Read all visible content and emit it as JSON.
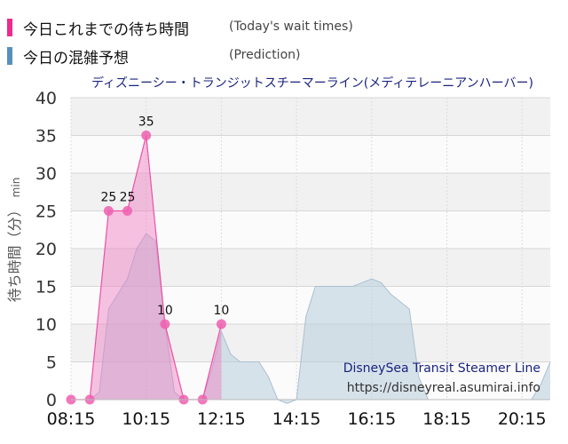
{
  "legend": {
    "today": {
      "label": "今日これまでの待ち時間",
      "note": "(Today's wait times)",
      "color": "#ee2a8f"
    },
    "prediction": {
      "label": "今日の混雑予想",
      "note": "(Prediction)",
      "color": "#5a8fbd"
    }
  },
  "chart_data": {
    "type": "area",
    "title": "ディズニーシー・トランジットスチーマーライン(メディテレーニアンハーバー)",
    "ylabel": "待ち時間（分）",
    "yunit": "min",
    "ylim": [
      0,
      40
    ],
    "yticks": [
      0,
      5,
      10,
      15,
      20,
      25,
      30,
      35,
      40
    ],
    "xlim": [
      "08:15",
      "21:00"
    ],
    "xticks": [
      "08:15",
      "10:15",
      "12:15",
      "14:15",
      "16:15",
      "18:15",
      "20:15"
    ],
    "grid": true,
    "watermark": {
      "name": "DisneySea Transit Steamer Line",
      "url": "https://disneyreal.asumirai.info"
    },
    "series": [
      {
        "name": "今日の混雑予想",
        "style": "area",
        "color": "#c5d5e2",
        "points": [
          [
            "08:15",
            0
          ],
          [
            "08:45",
            0
          ],
          [
            "09:00",
            1
          ],
          [
            "09:15",
            12
          ],
          [
            "09:30",
            14
          ],
          [
            "09:45",
            16
          ],
          [
            "10:00",
            20
          ],
          [
            "10:15",
            22
          ],
          [
            "10:30",
            21
          ],
          [
            "10:45",
            10
          ],
          [
            "11:00",
            1
          ],
          [
            "11:15",
            0
          ],
          [
            "11:45",
            0
          ],
          [
            "12:00",
            4
          ],
          [
            "12:15",
            9
          ],
          [
            "12:30",
            6
          ],
          [
            "12:45",
            5
          ],
          [
            "13:00",
            5
          ],
          [
            "13:15",
            5
          ],
          [
            "13:30",
            3
          ],
          [
            "13:45",
            0
          ],
          [
            "14:00",
            -0.5
          ],
          [
            "14:15",
            0
          ],
          [
            "14:30",
            11
          ],
          [
            "14:45",
            15
          ],
          [
            "15:00",
            15
          ],
          [
            "15:30",
            15
          ],
          [
            "15:45",
            15
          ],
          [
            "16:00",
            15.5
          ],
          [
            "16:15",
            16
          ],
          [
            "16:30",
            15.5
          ],
          [
            "16:45",
            14
          ],
          [
            "17:00",
            13
          ],
          [
            "17:15",
            12
          ],
          [
            "17:30",
            3
          ],
          [
            "17:45",
            0
          ],
          [
            "18:00",
            0
          ],
          [
            "19:45",
            0
          ],
          [
            "20:30",
            0
          ],
          [
            "20:45",
            2
          ],
          [
            "21:00",
            5
          ]
        ]
      },
      {
        "name": "今日これまでの待ち時間",
        "style": "area",
        "color": "#ee2a8f",
        "labels": true,
        "points": [
          [
            "08:15",
            0
          ],
          [
            "08:45",
            0
          ],
          [
            "09:15",
            25
          ],
          [
            "09:45",
            25
          ],
          [
            "10:15",
            35
          ],
          [
            "10:45",
            10
          ],
          [
            "11:15",
            0
          ],
          [
            "11:45",
            0
          ],
          [
            "12:15",
            10
          ]
        ]
      }
    ]
  }
}
